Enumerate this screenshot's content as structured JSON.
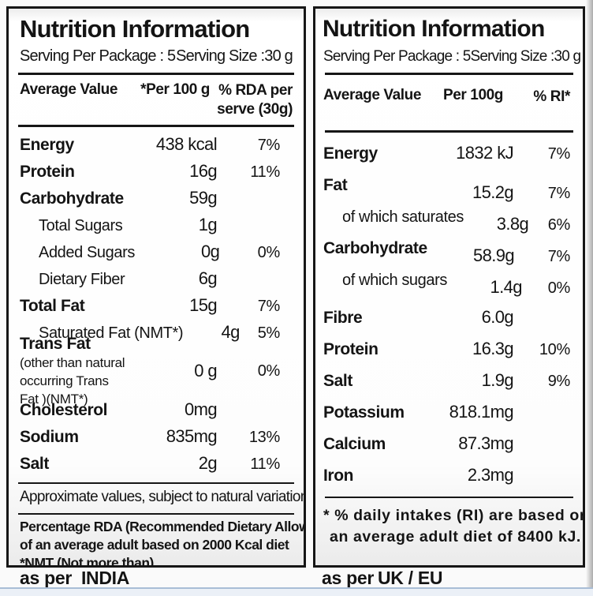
{
  "colors": {
    "text": "#141414",
    "panel_border": "#161616",
    "band_line": "#a9bdd6",
    "band_fill": "#ebf0f7"
  },
  "panels": [
    {
      "title": "Nutrition Information",
      "serving_per_package": "Serving Per Package : 5",
      "serving_size": "Serving Size :30 g",
      "columns": {
        "label": "Average Value",
        "per": "*Per 100 g",
        "pct_line1": "% RDA per",
        "pct_line2": "serve (30g)"
      },
      "rows": [
        {
          "label": "Energy",
          "value": "438 kcal",
          "pct": "7%"
        },
        {
          "label": "Protein",
          "value": "16g",
          "pct": "11%"
        },
        {
          "label": "Carbohydrate",
          "value": "59g",
          "pct": ""
        },
        {
          "label": "Total Sugars",
          "value": "1g",
          "pct": ""
        },
        {
          "label": "Added Sugars",
          "value": "0g",
          "pct": "0%"
        },
        {
          "label": "Dietary Fiber",
          "value": "6g",
          "pct": ""
        },
        {
          "label": "Total Fat",
          "value": "15g",
          "pct": "7%"
        },
        {
          "label": "Saturated Fat (NMT*)",
          "value": "4g",
          "pct": "5%"
        },
        {
          "label_bold": "Trans Fat",
          "label_rest": " (other than natural occurring Trans Fat )(NMT*)",
          "value": "0 g",
          "pct": "0%"
        },
        {
          "label": "Cholesterol",
          "value": "0mg",
          "pct": ""
        },
        {
          "label": "Sodium",
          "value": "835mg",
          "pct": "13%"
        },
        {
          "label": "Salt",
          "value": "2g",
          "pct": "11%"
        }
      ],
      "note1": "Approximate values, subject to natural variation",
      "note2_lines": [
        "Percentage RDA (Recommended Dietary Allowance)",
        "of an average adult based on 2000 Kcal diet",
        "*NMT (Not more than)"
      ],
      "caption_prefix": "as per",
      "caption_region": "INDIA"
    },
    {
      "title": "Nutrition Information",
      "serving_per_package": "Serving Per Package : 5",
      "serving_size": "Serving Size :30 g",
      "columns": {
        "label": "Average Value",
        "per": "Per 100g",
        "pct_line1": "% RI*",
        "pct_line2": ""
      },
      "rows": [
        {
          "label": "Energy",
          "value": "1832 kJ",
          "pct": "7%"
        },
        {
          "label": "Fat",
          "value": "15.2g",
          "pct": "7%"
        },
        {
          "label": "of which saturates",
          "value": "3.8g",
          "pct": "6%"
        },
        {
          "label": "Carbohydrate",
          "value": "58.9g",
          "pct": "7%"
        },
        {
          "label": "of which sugars",
          "value": "1.4g",
          "pct": "0%"
        },
        {
          "label": "Fibre",
          "value": "6.0g",
          "pct": ""
        },
        {
          "label": "Protein",
          "value": "16.3g",
          "pct": "10%"
        },
        {
          "label": "Salt",
          "value": "1.9g",
          "pct": "9%"
        },
        {
          "label": "Potassium",
          "value": "818.1mg",
          "pct": ""
        },
        {
          "label": "Calcium",
          "value": "87.3mg",
          "pct": ""
        },
        {
          "label": "Iron",
          "value": "2.3mg",
          "pct": ""
        }
      ],
      "note_lines": [
        "* % daily intakes (RI) are based on",
        "an average adult diet of 8400 kJ."
      ],
      "caption_prefix": "as per",
      "caption_region": "UK / EU"
    }
  ]
}
